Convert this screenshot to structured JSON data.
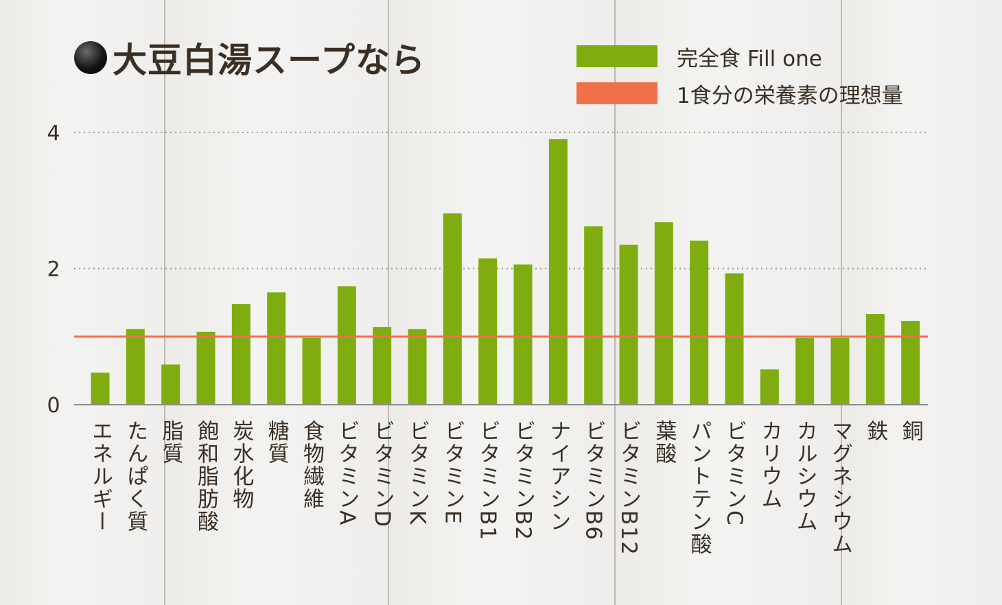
{
  "title": "大豆白湯スープなら",
  "legend": {
    "fill_one": "完全食 Fill one",
    "ideal": "1食分の栄養素の理想量"
  },
  "colors": {
    "bar": "#7fad0f",
    "ideal_line": "#f0704a",
    "axis_text": "#3b2f24",
    "grid": "#9a9893"
  },
  "chart_data": {
    "type": "bar",
    "title": "大豆白湯スープなら",
    "xlabel": "",
    "ylabel": "",
    "ylim": [
      0,
      4
    ],
    "yticks": [
      0,
      2,
      4
    ],
    "grid": "dotted horizontal at 2 and 4",
    "legend_position": "top-right",
    "reference_line": {
      "name": "1食分の栄養素の理想量",
      "value": 1.0
    },
    "categories": [
      "エネルギー",
      "たんぱく質",
      "脂質",
      "飽和脂肪酸",
      "炭水化物",
      "糖質",
      "食物繊維",
      "ビタミンA",
      "ビタミンD",
      "ビタミンK",
      "ビタミンE",
      "ビタミンB1",
      "ビタミンB2",
      "ナイアシン",
      "ビタミンB6",
      "ビタミンB12",
      "葉酸",
      "パントテン酸",
      "ビタミンC",
      "カリウム",
      "カルシウム",
      "マグネシウム",
      "鉄",
      "銅"
    ],
    "series": [
      {
        "name": "完全食 Fill one",
        "values": [
          0.47,
          1.11,
          0.59,
          1.07,
          1.48,
          1.65,
          0.98,
          1.74,
          1.14,
          1.11,
          2.81,
          2.15,
          2.06,
          3.9,
          2.62,
          2.35,
          2.68,
          2.41,
          1.93,
          0.52,
          0.98,
          0.98,
          1.33,
          1.23
        ]
      }
    ]
  }
}
